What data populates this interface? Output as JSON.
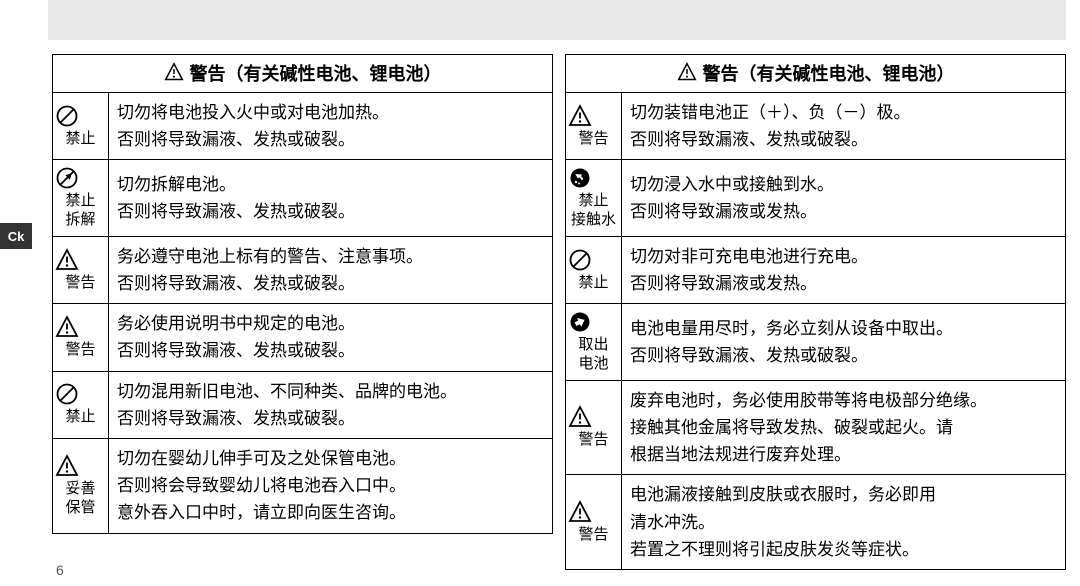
{
  "page_number": "6",
  "side_tab": "Ck",
  "header": "警告（有关碱性电池、锂电池）",
  "icons": {
    "prohibit": {
      "label": "禁止"
    },
    "disassemble": {
      "label": "禁止\n拆解"
    },
    "warning": {
      "label": "警告"
    },
    "store": {
      "label": "妥善\n保管"
    },
    "water": {
      "label": "禁止\n接触水"
    },
    "remove": {
      "label": "取出\n电池"
    }
  },
  "left_rows": [
    {
      "icon": "prohibit",
      "text": "切勿将电池投入火中或对电池加热。\n否则将导致漏液、发热或破裂。"
    },
    {
      "icon": "disassemble",
      "text": "切勿拆解电池。\n否则将导致漏液、发热或破裂。"
    },
    {
      "icon": "warning",
      "text": "务必遵守电池上标有的警告、注意事项。\n否则将导致漏液、发热或破裂。"
    },
    {
      "icon": "warning",
      "text": "务必使用说明书中规定的电池。\n否则将导致漏液、发热或破裂。"
    },
    {
      "icon": "prohibit",
      "text": "切勿混用新旧电池、不同种类、品牌的电池。\n否则将导致漏液、发热或破裂。"
    },
    {
      "icon": "store",
      "text": "切勿在婴幼儿伸手可及之处保管电池。\n否则将会导致婴幼儿将电池吞入口中。\n意外吞入口中时，请立即向医生咨询。"
    }
  ],
  "right_rows": [
    {
      "icon": "warning",
      "text": "切勿装错电池正（＋）、负（－）极。\n否则将导致漏液、发热或破裂。"
    },
    {
      "icon": "water",
      "text": "切勿浸入水中或接触到水。\n否则将导致漏液或发热。"
    },
    {
      "icon": "prohibit",
      "text": "切勿对非可充电电池进行充电。\n否则将导致漏液或发热。"
    },
    {
      "icon": "remove",
      "text": "电池电量用尽时，务必立刻从设备中取出。\n否则将导致漏液、发热或破裂。"
    },
    {
      "icon": "warning",
      "text": "废弃电池时，务必使用胶带等将电极部分绝缘。\n接触其他金属将导致发热、破裂或起火。请\n根据当地法规进行废弃处理。"
    },
    {
      "icon": "warning",
      "text": "电池漏液接触到皮肤或衣服时，务必即用\n清水冲洗。\n若置之不理则将引起皮肤发炎等症状。"
    }
  ]
}
